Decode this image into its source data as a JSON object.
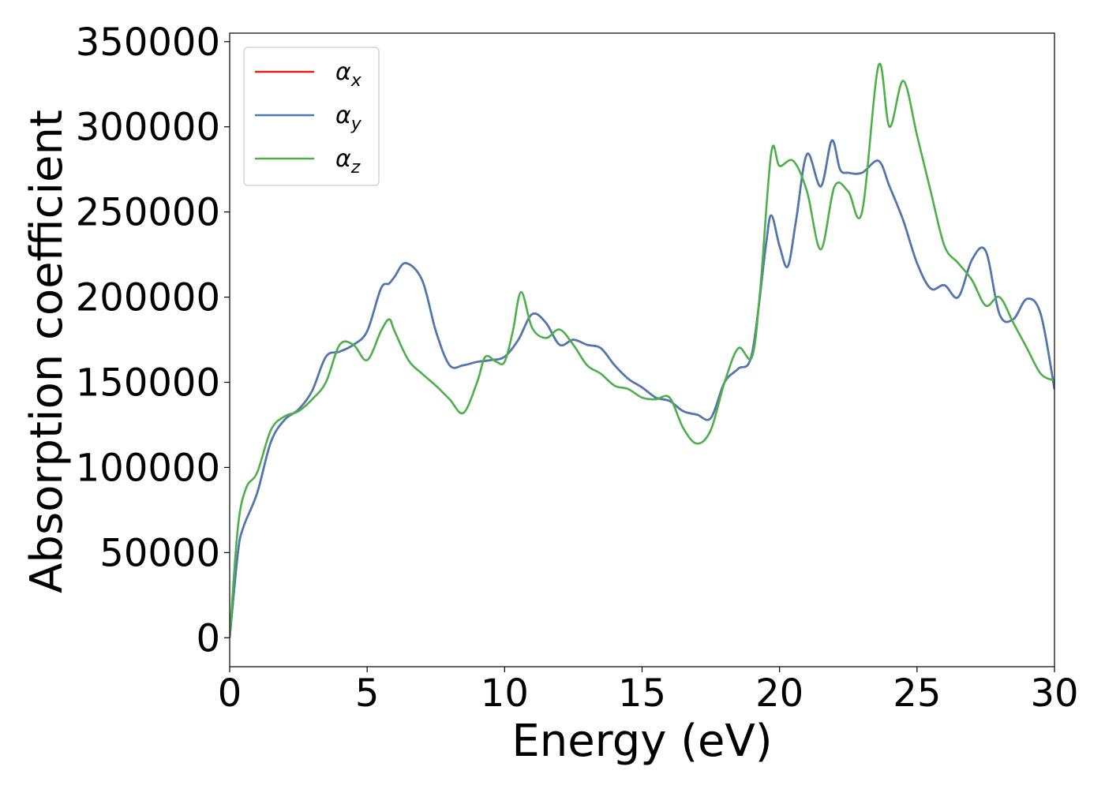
{
  "chart_data": {
    "type": "line",
    "xlabel": "Energy (eV)",
    "ylabel": "Absorption coefficient",
    "xlim": [
      0,
      30
    ],
    "ylim": [
      -17000,
      355000
    ],
    "xticks": [
      0,
      5,
      10,
      15,
      20,
      25,
      30
    ],
    "yticks": [
      0,
      50000,
      100000,
      150000,
      200000,
      250000,
      300000,
      350000
    ],
    "grid": false,
    "legend_position": "top-left",
    "series": [
      {
        "name": "α",
        "subscript": "x",
        "color": "#e41a1c",
        "x": [
          0,
          0.3,
          0.5,
          1.0,
          1.5,
          2.0,
          2.5,
          3.0,
          3.5,
          4.0,
          4.5,
          5.0,
          5.5,
          5.8,
          6.0,
          6.4,
          7.0,
          7.5,
          8.0,
          8.5,
          9.0,
          9.5,
          10.0,
          10.5,
          11.0,
          11.5,
          12.0,
          12.5,
          13.0,
          13.5,
          14.0,
          14.5,
          15.0,
          15.5,
          16.0,
          16.5,
          17.0,
          17.5,
          18.0,
          18.5,
          19.0,
          19.5,
          19.7,
          20.0,
          20.3,
          20.6,
          21.0,
          21.5,
          21.9,
          22.2,
          22.5,
          23.0,
          23.6,
          24.0,
          24.5,
          25.0,
          25.5,
          26.0,
          26.5,
          27.0,
          27.5,
          28.0,
          28.5,
          29.0,
          29.5,
          30.0
        ],
        "y": [
          0,
          50000,
          65000,
          85000,
          115000,
          128000,
          134000,
          145000,
          165000,
          168000,
          172000,
          180000,
          205000,
          208000,
          212000,
          220000,
          210000,
          180000,
          160000,
          160000,
          162000,
          163000,
          165000,
          175000,
          190000,
          185000,
          172000,
          175000,
          172000,
          170000,
          160000,
          152000,
          147000,
          141000,
          139000,
          133000,
          131000,
          129000,
          150000,
          158000,
          167000,
          230000,
          248000,
          230000,
          218000,
          245000,
          284000,
          265000,
          292000,
          275000,
          273000,
          273000,
          280000,
          265000,
          245000,
          220000,
          205000,
          207000,
          200000,
          222000,
          227000,
          190000,
          187000,
          199000,
          190000,
          146000
        ]
      },
      {
        "name": "α",
        "subscript": "y",
        "color": "#4a7ab4",
        "x": [
          0,
          0.3,
          0.5,
          1.0,
          1.5,
          2.0,
          2.5,
          3.0,
          3.5,
          4.0,
          4.5,
          5.0,
          5.5,
          5.8,
          6.0,
          6.4,
          7.0,
          7.5,
          8.0,
          8.5,
          9.0,
          9.5,
          10.0,
          10.5,
          11.0,
          11.5,
          12.0,
          12.5,
          13.0,
          13.5,
          14.0,
          14.5,
          15.0,
          15.5,
          16.0,
          16.5,
          17.0,
          17.5,
          18.0,
          18.5,
          19.0,
          19.5,
          19.7,
          20.0,
          20.3,
          20.6,
          21.0,
          21.5,
          21.9,
          22.2,
          22.5,
          23.0,
          23.6,
          24.0,
          24.5,
          25.0,
          25.5,
          26.0,
          26.5,
          27.0,
          27.5,
          28.0,
          28.5,
          29.0,
          29.5,
          30.0
        ],
        "y": [
          0,
          50000,
          65000,
          85000,
          115000,
          128000,
          134000,
          145000,
          165000,
          168000,
          172000,
          180000,
          205000,
          208000,
          212000,
          220000,
          210000,
          180000,
          160000,
          160000,
          162000,
          163000,
          165000,
          175000,
          190000,
          185000,
          172000,
          175000,
          172000,
          170000,
          160000,
          152000,
          147000,
          141000,
          139000,
          133000,
          131000,
          129000,
          150000,
          158000,
          167000,
          230000,
          248000,
          230000,
          218000,
          245000,
          284000,
          265000,
          292000,
          275000,
          273000,
          273000,
          280000,
          265000,
          245000,
          220000,
          205000,
          207000,
          200000,
          222000,
          227000,
          190000,
          187000,
          199000,
          190000,
          146000
        ]
      },
      {
        "name": "α",
        "subscript": "z",
        "color": "#4daf4a",
        "x": [
          0,
          0.3,
          0.6,
          1.0,
          1.5,
          2.0,
          2.5,
          3.0,
          3.5,
          4.0,
          4.5,
          5.0,
          5.5,
          5.8,
          6.0,
          6.5,
          7.0,
          7.5,
          8.0,
          8.5,
          9.0,
          9.3,
          9.7,
          10.0,
          10.3,
          10.6,
          11.0,
          11.5,
          12.0,
          12.5,
          13.0,
          13.5,
          14.0,
          14.5,
          15.0,
          15.5,
          16.0,
          16.5,
          17.0,
          17.5,
          18.0,
          18.5,
          19.0,
          19.3,
          19.7,
          20.0,
          20.5,
          21.0,
          21.5,
          22.0,
          22.5,
          23.0,
          23.6,
          24.0,
          24.5,
          25.0,
          25.5,
          26.0,
          26.5,
          27.0,
          27.5,
          28.0,
          28.5,
          29.0,
          29.5,
          30.0
        ],
        "y": [
          0,
          65000,
          88000,
          97000,
          122000,
          130000,
          133000,
          140000,
          150000,
          172000,
          172000,
          163000,
          180000,
          187000,
          180000,
          163000,
          155000,
          148000,
          140000,
          132000,
          150000,
          165000,
          162000,
          162000,
          180000,
          203000,
          182000,
          176000,
          181000,
          172000,
          160000,
          155000,
          148000,
          146000,
          141000,
          140000,
          141000,
          123000,
          114000,
          122000,
          150000,
          170000,
          165000,
          205000,
          285000,
          277000,
          280000,
          262000,
          228000,
          265000,
          262000,
          250000,
          336000,
          300000,
          327000,
          295000,
          262000,
          230000,
          220000,
          210000,
          195000,
          200000,
          185000,
          170000,
          155000,
          151000
        ]
      }
    ]
  }
}
